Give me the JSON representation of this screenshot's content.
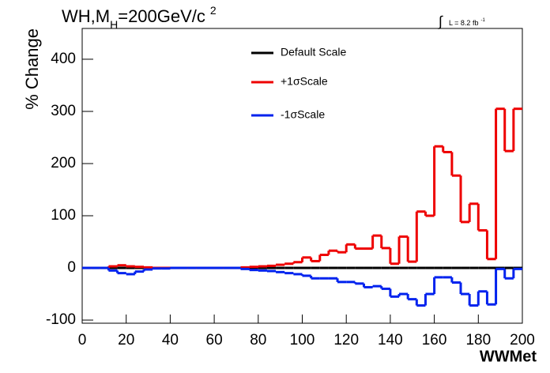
{
  "chart_data": {
    "type": "histogram",
    "title": {
      "main": "WH,M",
      "sub": "H",
      "rest": "=200GeV/c",
      "sup": "2"
    },
    "annotation": {
      "integral": "∫",
      "text": "L = 8.2 fb",
      "sup": "-1"
    },
    "x_label": "WWMet",
    "y_label": "% Change",
    "bins": [
      0,
      4,
      8,
      12,
      16,
      20,
      24,
      28,
      32,
      36,
      40,
      44,
      48,
      52,
      56,
      60,
      64,
      68,
      72,
      76,
      80,
      84,
      88,
      92,
      96,
      100,
      104,
      108,
      112,
      116,
      120,
      124,
      128,
      132,
      136,
      140,
      144,
      148,
      152,
      156,
      160,
      164,
      168,
      172,
      176,
      180,
      184,
      188,
      192,
      196,
      200
    ],
    "series": [
      {
        "name": "Default Scale",
        "color": "#000000",
        "values": [
          0,
          0,
          0,
          0,
          0,
          0,
          0,
          0,
          0,
          0,
          0,
          0,
          0,
          0,
          0,
          0,
          0,
          0,
          0,
          0,
          0,
          0,
          0,
          0,
          0,
          0,
          0,
          0,
          0,
          0,
          0,
          0,
          0,
          0,
          0,
          0,
          0,
          0,
          0,
          0,
          0,
          0,
          0,
          0,
          0,
          0,
          0,
          0,
          0,
          0
        ]
      },
      {
        "name": "+1σScale",
        "color": "#ee0000",
        "values": [
          0,
          0,
          0,
          3,
          5,
          3,
          2,
          1,
          0,
          0,
          0,
          0,
          0,
          0,
          0,
          0,
          0,
          0,
          1,
          2,
          3,
          4,
          6,
          8,
          11,
          20,
          13,
          25,
          33,
          30,
          45,
          37,
          37,
          62,
          38,
          8,
          60,
          12,
          108,
          100,
          233,
          222,
          177,
          88,
          123,
          72,
          17,
          305,
          224,
          305
        ]
      },
      {
        "name": "-1σScale",
        "color": "#0022ee",
        "values": [
          0,
          0,
          0,
          -5,
          -10,
          -12,
          -7,
          -3,
          -1,
          -1,
          0,
          0,
          0,
          0,
          0,
          0,
          0,
          0,
          -2,
          -4,
          -5,
          -6,
          -8,
          -10,
          -12,
          -15,
          -20,
          -20,
          -20,
          -27,
          -27,
          -30,
          -37,
          -35,
          -40,
          -55,
          -50,
          -60,
          -72,
          -50,
          -18,
          -18,
          -28,
          -50,
          -72,
          -45,
          -70,
          -2,
          -20,
          -2
        ]
      }
    ],
    "xlim": [
      0,
      200
    ],
    "xticks": [
      0,
      20,
      40,
      60,
      80,
      100,
      120,
      140,
      160,
      180,
      200
    ],
    "ylim": [
      -106,
      459
    ],
    "yticks": [
      -100,
      0,
      100,
      200,
      300,
      400
    ],
    "legend": "top-center"
  }
}
